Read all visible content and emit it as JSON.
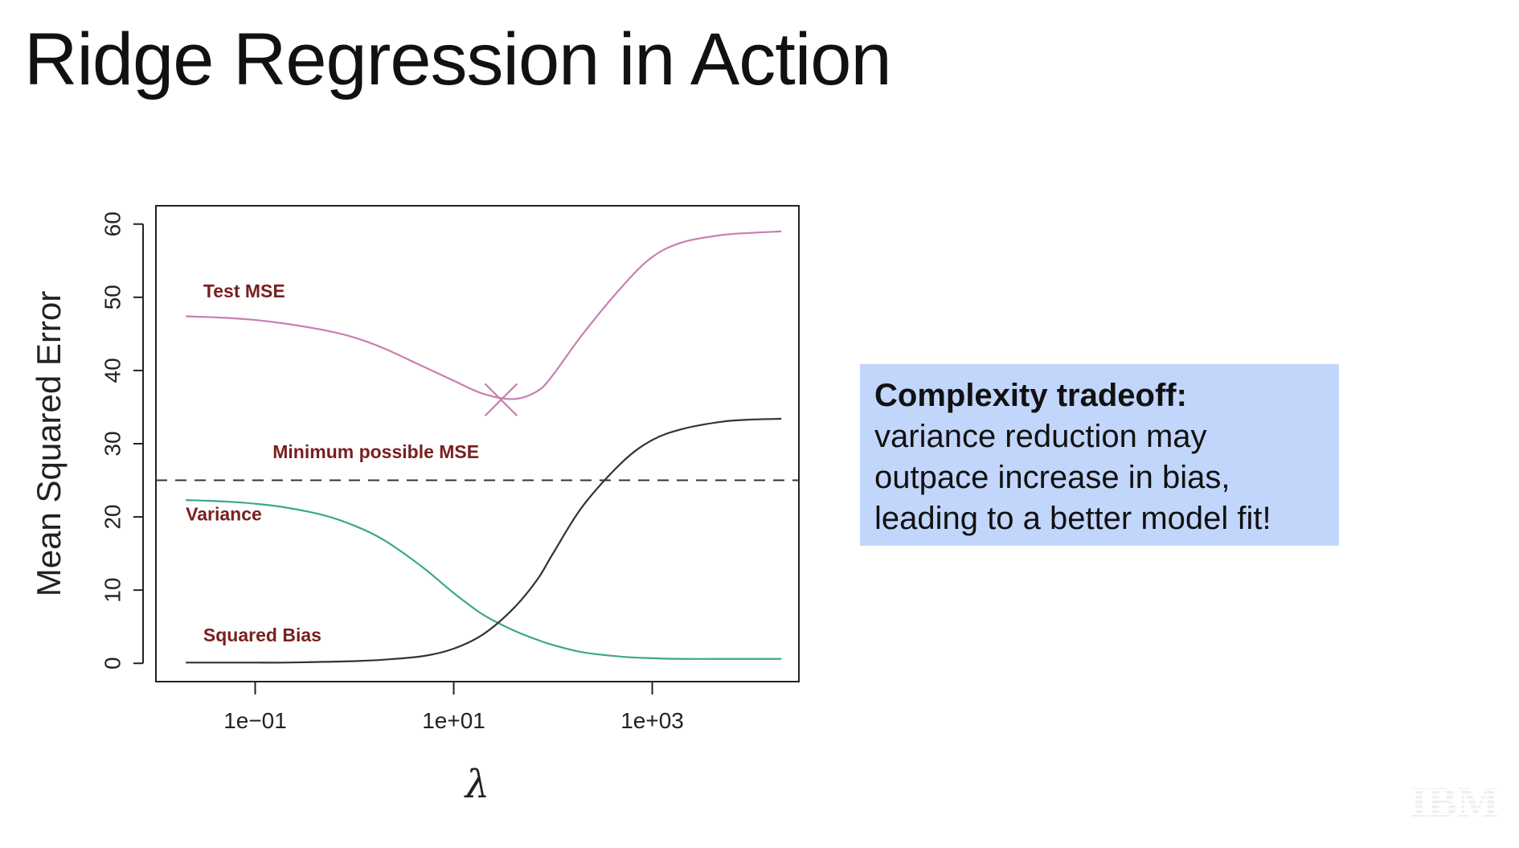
{
  "slide": {
    "title": "Ridge Regression in Action"
  },
  "callout": {
    "heading": "Complexity tradeoff:",
    "lines": [
      "variance reduction may",
      "outpace increase in bias,",
      "leading to a better model fit!"
    ],
    "background": "#c2d6fb"
  },
  "logo": {
    "text": "IBM",
    "icon": "ibm-logo"
  },
  "chart_data": {
    "type": "line",
    "title": "",
    "xlabel": "λ",
    "ylabel": "Mean Squared Error",
    "x_scale": "log",
    "xlim": [
      0.01,
      30000
    ],
    "ylim": [
      -2.5,
      62.5
    ],
    "x_ticks": [
      0.1,
      10,
      1000
    ],
    "x_tick_labels": [
      "1e−01",
      "1e+01",
      "1e+03"
    ],
    "y_ticks": [
      0,
      10,
      20,
      30,
      40,
      50,
      60
    ],
    "y_tick_labels": [
      "0",
      "10",
      "20",
      "30",
      "40",
      "50",
      "60"
    ],
    "grid": false,
    "legend": "none",
    "x": [
      0.02,
      0.05,
      0.1,
      0.2,
      0.5,
      1,
      2,
      5,
      10,
      20,
      40,
      70,
      100,
      200,
      500,
      1000,
      2000,
      5000,
      10000,
      20000
    ],
    "series": [
      {
        "name": "Test MSE",
        "color": "#c77fb0",
        "values": [
          47.4,
          47.2,
          46.9,
          46.4,
          45.5,
          44.5,
          43.0,
          40.5,
          38.6,
          36.8,
          36.1,
          37.2,
          39.4,
          45.0,
          51.5,
          55.5,
          57.5,
          58.5,
          58.8,
          59.0
        ]
      },
      {
        "name": "Variance",
        "color": "#3aa88a",
        "values": [
          22.3,
          22.1,
          21.8,
          21.3,
          20.2,
          18.8,
          16.8,
          13.0,
          9.6,
          6.6,
          4.5,
          3.2,
          2.5,
          1.5,
          0.9,
          0.7,
          0.6,
          0.6,
          0.6,
          0.6
        ]
      },
      {
        "name": "Squared Bias",
        "color": "#333333",
        "values": [
          0.1,
          0.1,
          0.1,
          0.1,
          0.2,
          0.3,
          0.5,
          1.0,
          2.0,
          4.0,
          7.5,
          11.5,
          15.0,
          21.5,
          27.5,
          30.5,
          32.0,
          33.0,
          33.3,
          33.4
        ]
      }
    ],
    "reference_lines": [
      {
        "name": "Minimum possible MSE",
        "y": 25,
        "style": "dashed",
        "color": "#333333"
      }
    ],
    "markers": [
      {
        "name": "min-test-mse",
        "x": 30,
        "y": 36,
        "shape": "cross",
        "color": "#c77fb0"
      }
    ],
    "annotations": [
      {
        "text": "Test MSE",
        "x": 0.03,
        "y": 50,
        "color": "#7a1f1f"
      },
      {
        "text": "Minimum possible MSE",
        "x": 0.15,
        "y": 28,
        "color": "#7a1f1f"
      },
      {
        "text": "Variance",
        "x": 0.02,
        "y": 19.5,
        "color": "#7a1f1f"
      },
      {
        "text": "Squared Bias",
        "x": 0.03,
        "y": 3,
        "color": "#7a1f1f"
      }
    ]
  }
}
